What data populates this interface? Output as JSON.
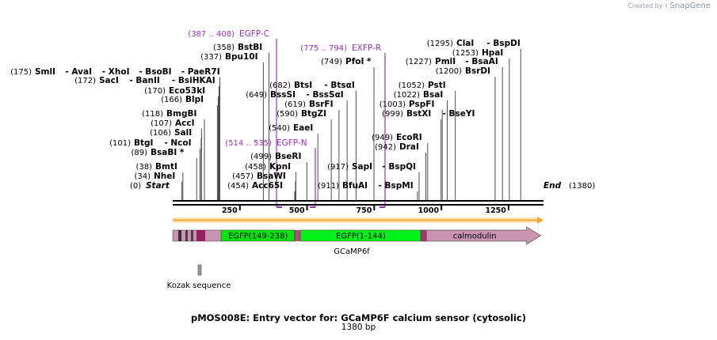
{
  "credit": {
    "prefix": "Created by",
    "brand": "SnapGene"
  },
  "title": "pMOS008E: Entry vector for: GCaMP6F calcium sensor (cytosolic)",
  "length_label": "1380 bp",
  "sequence": {
    "length": 1380,
    "start_label": "Start",
    "end_label": "End",
    "start_pos": "(0)",
    "end_pos": "(1380)"
  },
  "ticks": [
    {
      "value": 250,
      "label": "250"
    },
    {
      "value": 500,
      "label": "500"
    },
    {
      "value": 750,
      "label": "750"
    },
    {
      "value": 1000,
      "label": "1000"
    },
    {
      "value": 1250,
      "label": "1250"
    }
  ],
  "sites_left": [
    {
      "pos": "(175)",
      "names": [
        "SmlI",
        "AvaI",
        "XhoI",
        "BsoBI",
        "PaeR7I"
      ],
      "bp": 175
    },
    {
      "pos": "(172)",
      "names": [
        "SacI",
        "BanII",
        "BsiHKAI"
      ],
      "bp": 172
    },
    {
      "pos": "(170)",
      "names": [
        "Eco53kI"
      ],
      "bp": 170
    },
    {
      "pos": "(166)",
      "names": [
        "BlpI"
      ],
      "bp": 166
    },
    {
      "pos": "(118)",
      "names": [
        "BmgBI"
      ],
      "bp": 118
    },
    {
      "pos": "(107)",
      "names": [
        "AccI"
      ],
      "bp": 107
    },
    {
      "pos": "(106)",
      "names": [
        "SalI"
      ],
      "bp": 106
    },
    {
      "pos": "(101)",
      "names": [
        "BtgI",
        "NcoI"
      ],
      "bp": 101
    },
    {
      "pos": "(89)",
      "names": [
        "BsaBI *"
      ],
      "bp": 89
    },
    {
      "pos": "(38)",
      "names": [
        "BmtI"
      ],
      "bp": 38
    },
    {
      "pos": "(34)",
      "names": [
        "NheI"
      ],
      "bp": 34
    }
  ],
  "sites_mid": [
    {
      "pos": "(358)",
      "names": [
        "BstBI"
      ],
      "bp": 358
    },
    {
      "pos": "(337)",
      "names": [
        "Bpu10I"
      ],
      "bp": 337
    },
    {
      "pos": "(682)",
      "names": [
        "BtsI",
        "BtsαI"
      ],
      "bp": 682
    },
    {
      "pos": "(649)",
      "names": [
        "BssSI",
        "BssSαI"
      ],
      "bp": 649
    },
    {
      "pos": "(619)",
      "names": [
        "BsrFI"
      ],
      "bp": 619
    },
    {
      "pos": "(590)",
      "names": [
        "BtgZI"
      ],
      "bp": 590
    },
    {
      "pos": "(540)",
      "names": [
        "EaeI"
      ],
      "bp": 540
    },
    {
      "pos": "(499)",
      "names": [
        "BseRI"
      ],
      "bp": 499
    },
    {
      "pos": "(458)",
      "names": [
        "KpnI"
      ],
      "bp": 458
    },
    {
      "pos": "(457)",
      "names": [
        "BsaWI"
      ],
      "bp": 457
    },
    {
      "pos": "(454)",
      "names": [
        "Acc65I"
      ],
      "bp": 454
    },
    {
      "pos": "(749)",
      "names": [
        "PfoI *"
      ],
      "bp": 749
    },
    {
      "pos": "(917)",
      "names": [
        "SapI",
        "BspQI"
      ],
      "bp": 917
    },
    {
      "pos": "(911)",
      "names": [
        "BfuAI",
        "BspMI"
      ],
      "bp": 911
    }
  ],
  "sites_right": [
    {
      "pos": "(1295)",
      "names": [
        "ClaI",
        "BspDI"
      ],
      "bp": 1295
    },
    {
      "pos": "(1253)",
      "names": [
        "HpaI"
      ],
      "bp": 1253
    },
    {
      "pos": "(1227)",
      "names": [
        "PmlI",
        "BsaAI"
      ],
      "bp": 1227
    },
    {
      "pos": "(1200)",
      "names": [
        "BsrDI"
      ],
      "bp": 1200
    },
    {
      "pos": "(1052)",
      "names": [
        "PstI"
      ],
      "bp": 1052
    },
    {
      "pos": "(1022)",
      "names": [
        "BsaI"
      ],
      "bp": 1022
    },
    {
      "pos": "(1003)",
      "names": [
        "PspFI"
      ],
      "bp": 1003
    },
    {
      "pos": "(999)",
      "names": [
        "BstXI",
        "BseYI"
      ],
      "bp": 999
    },
    {
      "pos": "(949)",
      "names": [
        "EcoRI"
      ],
      "bp": 949
    },
    {
      "pos": "(942)",
      "names": [
        "DraI"
      ],
      "bp": 942
    }
  ],
  "primers": [
    {
      "pos": "(387 .. 408)",
      "name": "EGFP-C",
      "bp": 408
    },
    {
      "pos": "(775 .. 794)",
      "name": "EXFP-R",
      "bp": 794
    },
    {
      "pos": "(514 .. 535)",
      "name": "EGFP-N",
      "bp": 535
    }
  ],
  "features": [
    {
      "label": "EGFP(149-238)",
      "start": 180,
      "end": 455,
      "color": "#00e60a"
    },
    {
      "label": "EGFP(1-144)",
      "start": 475,
      "end": 925,
      "color": "#00f01a"
    },
    {
      "label": "calmodulin",
      "start": 925,
      "end": 1370,
      "color": "#c894b0"
    }
  ],
  "gene_label": "GCaMP6f",
  "kozak_label": "Kozak sequence",
  "colors": {
    "primer": "#9a2fbf",
    "orf": "#f3a43a",
    "kozak": "#8d97a3",
    "linker": "#9a1f62"
  }
}
